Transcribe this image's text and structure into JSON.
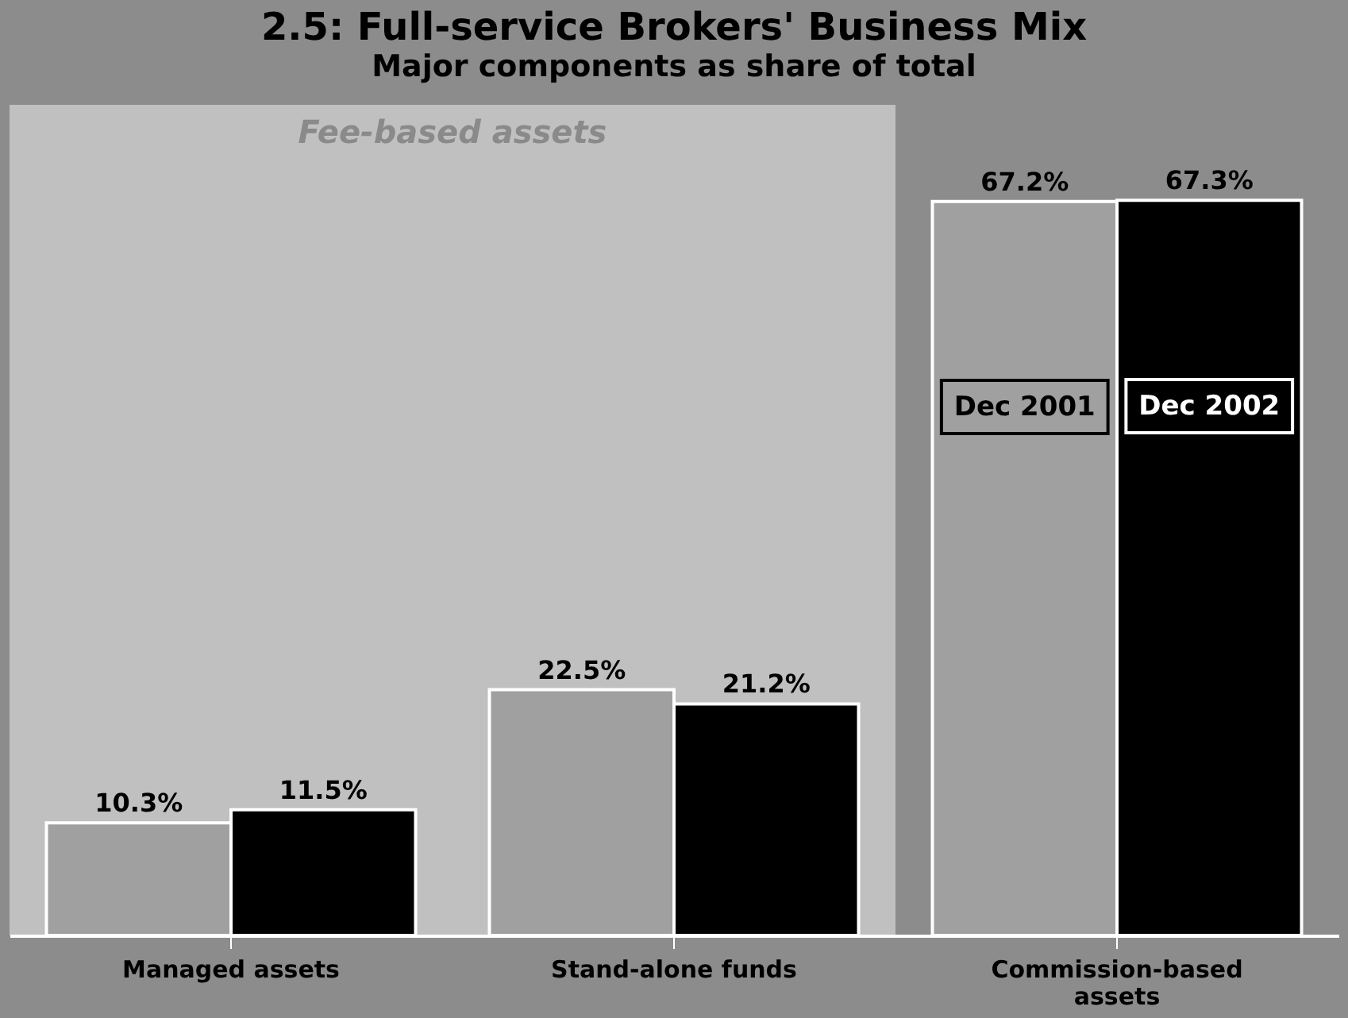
{
  "chart_data": {
    "type": "bar",
    "title": "2.5: Full-service Brokers' Business Mix",
    "subtitle": "Major components as share of total",
    "categories": [
      "Managed assets",
      "Stand-alone funds",
      "Commission-based assets"
    ],
    "series": [
      {
        "name": "Dec 2001",
        "color": "#a0a0a0",
        "values": [
          10.3,
          22.5,
          67.2
        ],
        "value_labels": [
          "10.3%",
          "22.5%",
          "67.2%"
        ]
      },
      {
        "name": "Dec 2002",
        "color": "#000000",
        "values": [
          11.5,
          21.2,
          67.3
        ],
        "value_labels": [
          "11.5%",
          "21.2%",
          "67.3%"
        ]
      }
    ],
    "bands": [
      {
        "axis": "x",
        "from": "Managed assets",
        "to": "Stand-alone funds",
        "label": "Fee-based assets",
        "color": "#c0c0c0"
      }
    ]
  }
}
